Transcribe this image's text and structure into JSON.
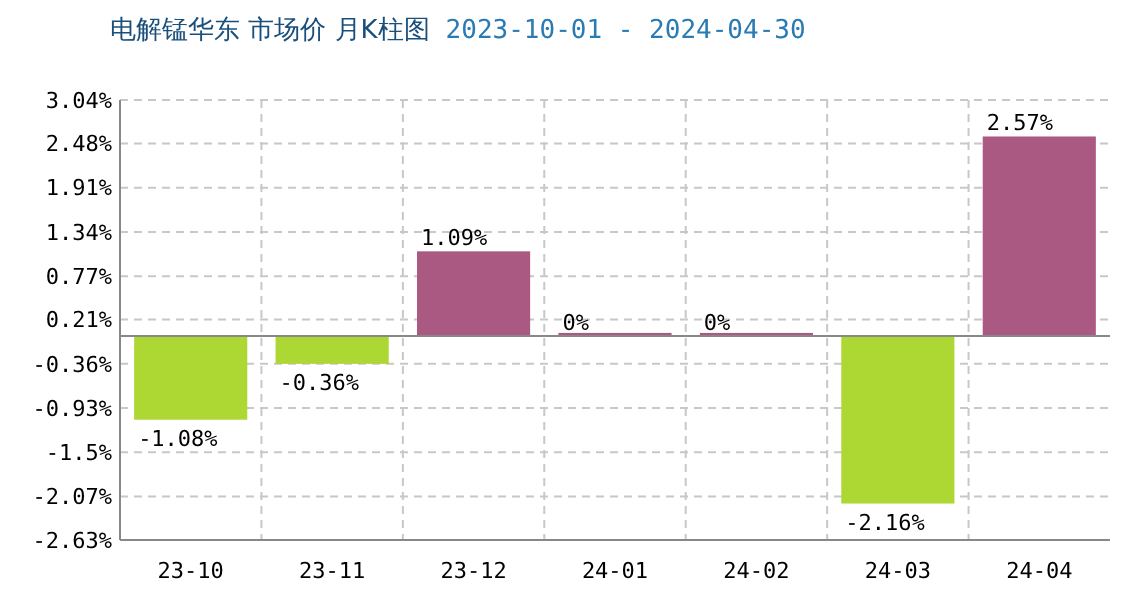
{
  "chart_data": {
    "type": "bar",
    "title": "电解锰华东 市场价 月K柱图",
    "subtitle": "2023-10-01 - 2024-04-30",
    "categories": [
      "23-10",
      "23-11",
      "23-12",
      "24-01",
      "24-02",
      "24-03",
      "24-04"
    ],
    "values": [
      -1.08,
      -0.36,
      1.09,
      0,
      0,
      -2.16,
      2.57
    ],
    "colors": [
      "#add733",
      "#add733",
      "#aa5a82",
      "#aa5a82",
      "#aa5a82",
      "#add733",
      "#aa5a82"
    ],
    "value_labels": [
      "-1.08%",
      "-0.36%",
      "1.09%",
      "0%",
      "0%",
      "-2.16%",
      "2.57%"
    ],
    "ylim": [
      -2.63,
      3.04
    ],
    "yticks": [
      {
        "value": -2.63,
        "label": "-2.63%"
      },
      {
        "value": -2.07,
        "label": "-2.07%"
      },
      {
        "value": -1.5,
        "label": "-1.5%"
      },
      {
        "value": -0.93,
        "label": "-0.93%"
      },
      {
        "value": -0.36,
        "label": "-0.36%"
      },
      {
        "value": 0.21,
        "label": "0.21%"
      },
      {
        "value": 0.77,
        "label": "0.77%"
      },
      {
        "value": 1.34,
        "label": "1.34%"
      },
      {
        "value": 1.91,
        "label": "1.91%"
      },
      {
        "value": 2.48,
        "label": "2.48%"
      },
      {
        "value": 3.04,
        "label": "3.04%"
      }
    ],
    "grid": true
  }
}
